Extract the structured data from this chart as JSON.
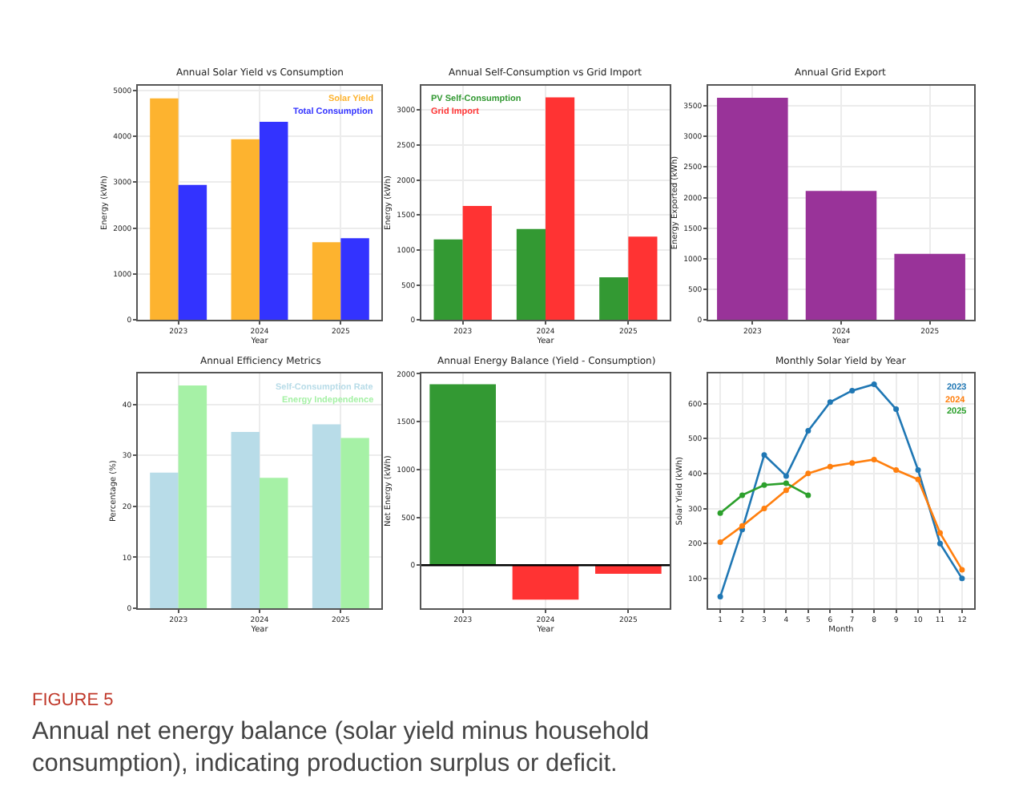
{
  "chart_data": [
    {
      "type": "bar",
      "title": "Annual Solar Yield vs Consumption",
      "xlabel": "Year",
      "ylabel": "Energy (kWh)",
      "categories": [
        "2023",
        "2024",
        "2025"
      ],
      "series": [
        {
          "name": "Solar Yield",
          "color": "#fdb32f",
          "values": [
            4820,
            3930,
            1690
          ]
        },
        {
          "name": "Total Consumption",
          "color": "#3333ff",
          "values": [
            2940,
            4310,
            1780
          ]
        }
      ],
      "ylim": [
        0,
        5100
      ],
      "yticks": [
        0,
        1000,
        2000,
        3000,
        4000,
        5000
      ],
      "grid": true,
      "legend": "top right",
      "annotations": [
        "FIGURE 5",
        "Annual net energy balance (solar yield minus household consumption), indicating production surplus or deficit."
      ]
    },
    {
      "type": "bar",
      "title": "Annual Self-Consumption vs Grid Import",
      "xlabel": "Year",
      "ylabel": "Energy (kWh)",
      "categories": [
        "2023",
        "2024",
        "2025"
      ],
      "series": [
        {
          "name": "PV Self-Consumption",
          "color": "#339933",
          "values": [
            1150,
            1300,
            610
          ]
        },
        {
          "name": "Grid Import",
          "color": "#ff3333",
          "values": [
            1630,
            3180,
            1190
          ]
        }
      ],
      "ylim": [
        0,
        3350
      ],
      "yticks": [
        0,
        500,
        1000,
        1500,
        2000,
        2500,
        3000
      ],
      "grid": true,
      "legend": "top left"
    },
    {
      "type": "bar",
      "title": "Annual Grid Export",
      "xlabel": "Year",
      "ylabel": "Energy Exported (kWh)",
      "categories": [
        "2023",
        "2024",
        "2025"
      ],
      "series": [
        {
          "color": "#993399",
          "values": [
            3630,
            2110,
            1080
          ]
        }
      ],
      "ylim": [
        0,
        3830
      ],
      "yticks": [
        0,
        500,
        1000,
        1500,
        2000,
        2500,
        3000,
        3500
      ],
      "grid": true
    },
    {
      "type": "bar",
      "title": "Annual Efficiency Metrics",
      "xlabel": "Year",
      "ylabel": "Percentage (%)",
      "categories": [
        "2023",
        "2024",
        "2025"
      ],
      "series": [
        {
          "name": "Self-Consumption Rate",
          "color": "#b8dce8",
          "values": [
            26.6,
            34.6,
            36.1
          ]
        },
        {
          "name": "Energy Independence",
          "color": "#a6f1a6",
          "values": [
            43.7,
            25.6,
            33.4
          ]
        }
      ],
      "ylim": [
        0,
        46
      ],
      "yticks": [
        0,
        10,
        20,
        30,
        40
      ],
      "grid": true,
      "legend": "top right"
    },
    {
      "type": "bar",
      "title": "Annual Energy Balance (Yield - Consumption)",
      "xlabel": "Year",
      "ylabel": "Net Energy (kWh)",
      "categories": [
        "2023",
        "2024",
        "2025"
      ],
      "series": [
        {
          "colors": [
            "#339933",
            "#ff3333",
            "#ff3333"
          ],
          "values": [
            1890,
            -360,
            -90
          ]
        }
      ],
      "ylim": [
        -450,
        2000
      ],
      "yticks": [
        0,
        500,
        1000,
        1500,
        2000
      ],
      "grid": true,
      "ref_lines": [
        {
          "axis": "y",
          "value": 0,
          "color": "#000000"
        }
      ]
    },
    {
      "type": "line",
      "title": "Monthly Solar Yield by Year",
      "xlabel": "Month",
      "ylabel": "Solar Yield (kWh)",
      "x": [
        1,
        2,
        3,
        4,
        5,
        6,
        7,
        8,
        9,
        10,
        11,
        12
      ],
      "series": [
        {
          "name": "2023",
          "color": "#1f77b4",
          "values": [
            48,
            240,
            453,
            393,
            522,
            604,
            637,
            655,
            584,
            410,
            200,
            100
          ]
        },
        {
          "name": "2024",
          "color": "#ff7f0e",
          "values": [
            204,
            250,
            300,
            352,
            400,
            420,
            430,
            440,
            410,
            383,
            230,
            125
          ]
        },
        {
          "name": "2025",
          "color": "#2ca02c",
          "values": [
            287,
            338,
            367,
            372,
            338,
            null,
            null,
            null,
            null,
            null,
            null,
            null
          ]
        }
      ],
      "xlim": [
        0.45,
        12.55
      ],
      "xticks": [
        1,
        2,
        3,
        4,
        5,
        6,
        7,
        8,
        9,
        10,
        11,
        12
      ],
      "ylim": [
        15,
        685
      ],
      "yticks": [
        100,
        200,
        300,
        400,
        500,
        600
      ],
      "grid": true,
      "legend": "top right",
      "marker": "circle",
      "line_style": "solid"
    }
  ]
}
